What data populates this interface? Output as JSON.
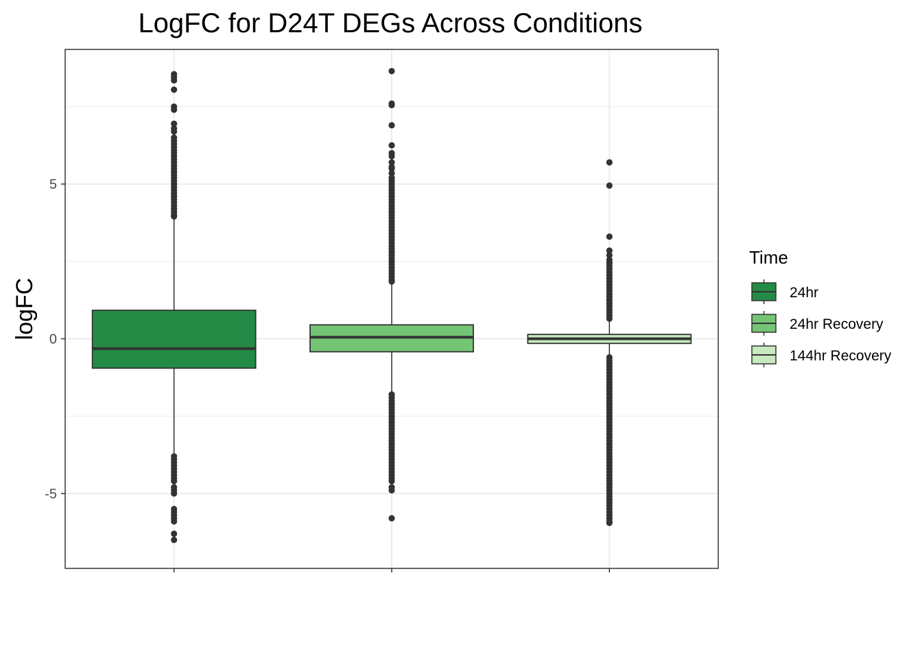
{
  "chart_data": {
    "type": "box",
    "title": "LogFC for D24T DEGs Across Conditions",
    "xlabel": "",
    "ylabel": "logFC",
    "ylim": [
      -7.42,
      9.35
    ],
    "yticks": [
      -5,
      0,
      5
    ],
    "grid": true,
    "legend": {
      "title": "Time",
      "position": "right",
      "entries": [
        "24hr",
        "24hr Recovery",
        "144hr Recovery"
      ]
    },
    "series": [
      {
        "name": "24hr",
        "color": "#238b45",
        "q1": -0.95,
        "median": -0.32,
        "q3": 0.92,
        "whisker_low": -3.75,
        "whisker_high": 3.85,
        "outliers": [
          8.55,
          8.45,
          8.35,
          8.05,
          7.5,
          7.4,
          6.95,
          6.8,
          6.7,
          6.5,
          6.4,
          6.3,
          6.2,
          6.1,
          6.0,
          5.9,
          5.8,
          5.7,
          5.6,
          5.5,
          5.4,
          5.3,
          5.2,
          5.1,
          5.0,
          4.9,
          4.8,
          4.7,
          4.6,
          4.5,
          4.4,
          4.3,
          4.2,
          4.1,
          4.0,
          3.95,
          -3.8,
          -3.9,
          -4.0,
          -4.1,
          -4.2,
          -4.3,
          -4.4,
          -4.5,
          -4.6,
          -4.8,
          -4.9,
          -5.0,
          -5.5,
          -5.6,
          -5.7,
          -5.8,
          -5.9,
          -6.3,
          -6.5
        ]
      },
      {
        "name": "24hr Recovery",
        "color": "#74c476",
        "q1": -0.42,
        "median": 0.05,
        "q3": 0.45,
        "whisker_low": -1.75,
        "whisker_high": 1.78,
        "outliers": [
          8.65,
          7.6,
          7.55,
          6.9,
          6.25,
          6.0,
          5.9,
          5.7,
          5.55,
          5.5,
          5.35,
          5.2,
          5.1,
          5.0,
          4.9,
          4.8,
          4.7,
          4.6,
          4.5,
          4.4,
          4.3,
          4.2,
          4.1,
          4.0,
          3.9,
          3.8,
          3.7,
          3.6,
          3.5,
          3.4,
          3.3,
          3.2,
          3.1,
          3.0,
          2.9,
          2.8,
          2.7,
          2.6,
          2.5,
          2.4,
          2.3,
          2.2,
          2.1,
          2.0,
          1.9,
          1.85,
          -1.8,
          -1.9,
          -2.0,
          -2.1,
          -2.2,
          -2.3,
          -2.4,
          -2.5,
          -2.6,
          -2.7,
          -2.8,
          -2.9,
          -3.0,
          -3.1,
          -3.2,
          -3.3,
          -3.4,
          -3.5,
          -3.6,
          -3.7,
          -3.8,
          -3.9,
          -4.0,
          -4.1,
          -4.2,
          -4.3,
          -4.4,
          -4.5,
          -4.6,
          -4.8,
          -4.9,
          -5.8
        ]
      },
      {
        "name": "144hr Recovery",
        "color": "#c7e9c0",
        "q1": -0.15,
        "median": 0.0,
        "q3": 0.14,
        "whisker_low": -0.55,
        "whisker_high": 0.58,
        "outliers": [
          5.7,
          4.95,
          3.3,
          2.85,
          2.7,
          2.55,
          2.45,
          2.35,
          2.25,
          2.15,
          2.05,
          1.95,
          1.85,
          1.75,
          1.65,
          1.55,
          1.45,
          1.35,
          1.25,
          1.15,
          1.05,
          0.95,
          0.85,
          0.75,
          0.65,
          -0.6,
          -0.7,
          -0.8,
          -0.9,
          -1.0,
          -1.1,
          -1.2,
          -1.3,
          -1.4,
          -1.5,
          -1.6,
          -1.7,
          -1.8,
          -1.9,
          -2.0,
          -2.1,
          -2.2,
          -2.3,
          -2.4,
          -2.5,
          -2.6,
          -2.7,
          -2.8,
          -2.9,
          -3.0,
          -3.1,
          -3.2,
          -3.3,
          -3.4,
          -3.5,
          -3.6,
          -3.7,
          -3.8,
          -3.9,
          -4.0,
          -4.1,
          -4.2,
          -4.3,
          -4.4,
          -4.5,
          -4.6,
          -4.7,
          -4.8,
          -4.9,
          -5.0,
          -5.1,
          -5.2,
          -5.3,
          -5.4,
          -5.5,
          -5.6,
          -5.7,
          -5.8,
          -5.9,
          -5.95
        ]
      }
    ]
  }
}
